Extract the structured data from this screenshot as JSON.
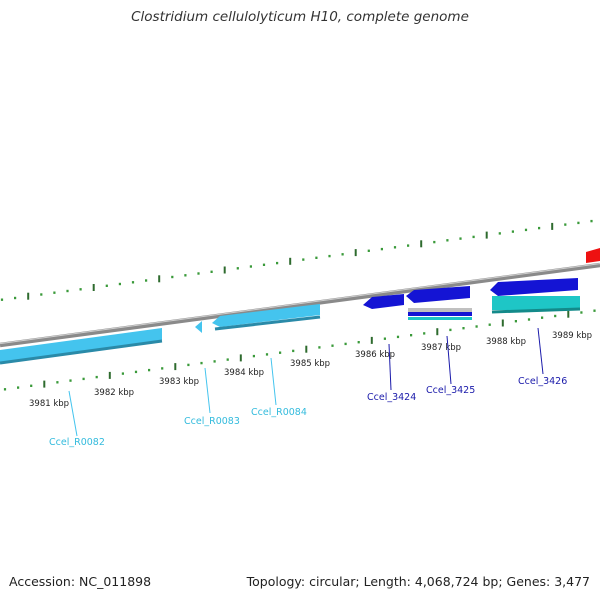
{
  "title": "Clostridium cellulolyticum H10, complete genome",
  "footer": {
    "accession": "Accession: NC_011898",
    "summary": "Topology: circular; Length: 4,068,724 bp; Genes: 3,477"
  },
  "colors": {
    "backbone": "#8a8a8a",
    "tick_major": "#2e6b2e",
    "tick_minor": "#3a9a3a",
    "rrna": "#44c4ee",
    "cds": "#1414d4",
    "teal": "#1ec6c6",
    "red": "#ee1111",
    "rrna_label": "#33bbdd",
    "cds_label": "#1a1aaa"
  },
  "scale_labels": [
    "3981 kbp",
    "3982 kbp",
    "3983 kbp",
    "3984 kbp",
    "3985 kbp",
    "3986 kbp",
    "3987 kbp",
    "3988 kbp",
    "3989 kbp"
  ],
  "genes": [
    {
      "name": "Ccel_R0082",
      "type": "rRNA"
    },
    {
      "name": "Ccel_R0083",
      "type": "rRNA"
    },
    {
      "name": "Ccel_R0084",
      "type": "rRNA"
    },
    {
      "name": "Ccel_3424",
      "type": "CDS"
    },
    {
      "name": "Ccel_3425",
      "type": "CDS"
    },
    {
      "name": "Ccel_3426",
      "type": "CDS"
    }
  ]
}
